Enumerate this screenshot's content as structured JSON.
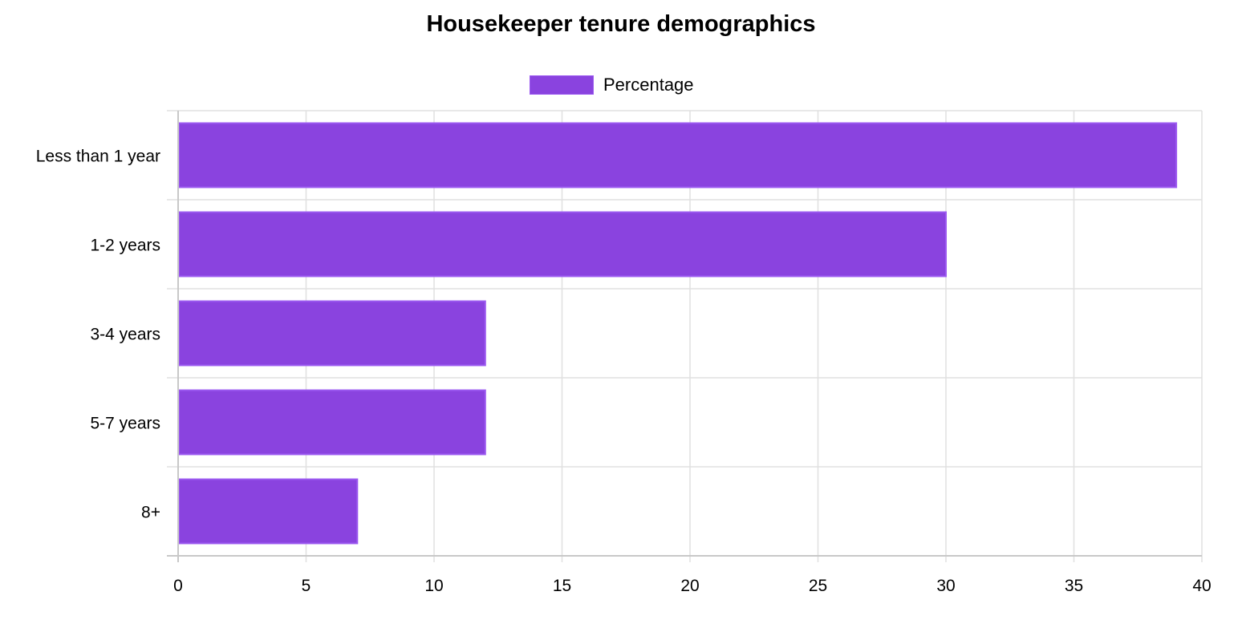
{
  "chart_data": {
    "type": "bar",
    "orientation": "horizontal",
    "title": "Housekeeper tenure demographics",
    "categories": [
      "Less than 1 year",
      "1-2 years",
      "3-4 years",
      "5-7 years",
      "8+"
    ],
    "series": [
      {
        "name": "Percentage",
        "values": [
          39,
          30,
          12,
          12,
          7
        ],
        "color": "#8a43df",
        "border_color": "#9b59f0"
      }
    ],
    "xlim": [
      0,
      40
    ],
    "x_ticks": [
      0,
      5,
      10,
      15,
      20,
      25,
      30,
      35,
      40
    ],
    "grid": true,
    "legend_position": "top-center"
  }
}
